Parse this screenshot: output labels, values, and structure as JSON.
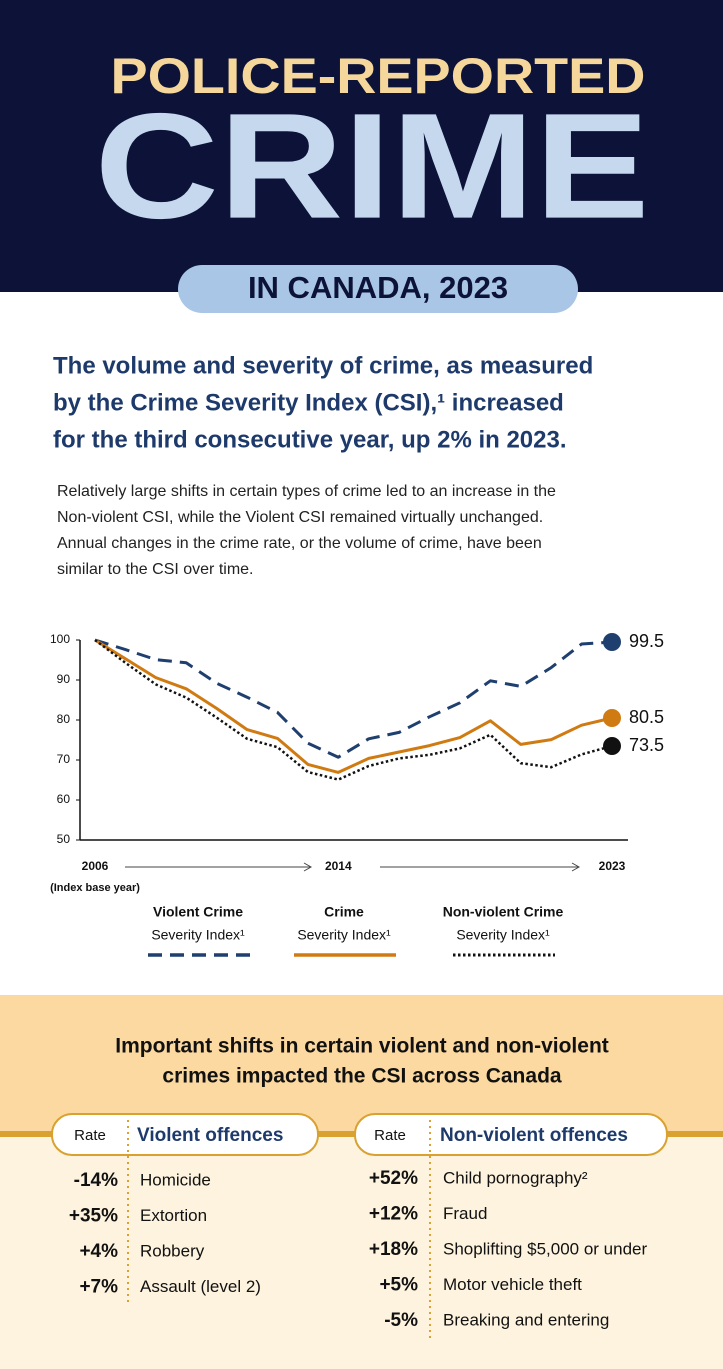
{
  "header": {
    "kicker": "POLICE-REPORTED",
    "title": "CRIME",
    "subtitle": "IN CANADA, 2023"
  },
  "intro": {
    "headline": [
      "The volume and severity of crime, as measured",
      "by the Crime Severity Index (CSI),¹ increased",
      "for the third consecutive year, up 2% in 2023."
    ],
    "body": [
      "Relatively large shifts in certain types of crime led to an increase in the",
      "Non-violent CSI, while the Violent CSI remained virtually unchanged.",
      "Annual changes in the crime rate, or the volume of crime, have been",
      "similar to the CSI over time."
    ]
  },
  "chart_data": {
    "type": "line",
    "x": [
      2006,
      2007,
      2008,
      2009,
      2010,
      2011,
      2012,
      2013,
      2014,
      2015,
      2016,
      2017,
      2018,
      2019,
      2020,
      2021,
      2022,
      2023
    ],
    "xlim": [
      2006,
      2023
    ],
    "xticks": [
      2006,
      2014,
      2023
    ],
    "x_note": "(Index base year)",
    "ylim": [
      50,
      100
    ],
    "yticks": [
      50,
      60,
      70,
      80,
      90,
      100
    ],
    "grid": false,
    "series": [
      {
        "name": "Violent Crime",
        "subname": "Severity Index¹",
        "color": "#1f3f6e",
        "style": "dashed",
        "values": [
          100,
          97.6,
          95.1,
          94.3,
          89.2,
          85.7,
          81.9,
          74.2,
          70.7,
          75.3,
          76.9,
          80.8,
          84.3,
          89.8,
          88.4,
          93.1,
          99.0,
          99.5
        ]
      },
      {
        "name": "Crime",
        "subname": "Severity Index¹",
        "color": "#d07a12",
        "style": "solid",
        "values": [
          100,
          95.3,
          90.6,
          87.8,
          82.9,
          77.6,
          75.4,
          68.9,
          66.9,
          70.4,
          72.0,
          73.6,
          75.6,
          79.8,
          73.9,
          75.1,
          78.7,
          80.5
        ]
      },
      {
        "name": "Non-violent Crime",
        "subname": "Severity Index¹",
        "color": "#111111",
        "style": "dotted",
        "values": [
          100,
          94.3,
          88.9,
          85.6,
          80.6,
          75.3,
          73.2,
          67.0,
          65.1,
          68.5,
          70.4,
          71.3,
          72.9,
          76.3,
          69.2,
          68.2,
          71.4,
          73.5
        ]
      }
    ]
  },
  "table": {
    "title": [
      "Important shifts in certain violent and non-violent",
      "crimes impacted the CSI across Canada"
    ],
    "violent": {
      "rate_header": "Rate",
      "header": "Violent offences",
      "rows": [
        [
          "-14%",
          "Homicide"
        ],
        [
          "+35%",
          "Extortion"
        ],
        [
          "+4%",
          "Robbery"
        ],
        [
          "+7%",
          "Assault (level 2)"
        ]
      ]
    },
    "non_violent": {
      "rate_header": "Rate",
      "header": "Non-violent offences",
      "rows": [
        [
          "+52%",
          "Child pornography²"
        ],
        [
          "+12%",
          "Fraud"
        ],
        [
          "+18%",
          "Shoplifting $5,000 or under"
        ],
        [
          "+5%",
          "Motor vehicle theft"
        ],
        [
          "-5%",
          "Breaking and entering"
        ]
      ]
    }
  }
}
